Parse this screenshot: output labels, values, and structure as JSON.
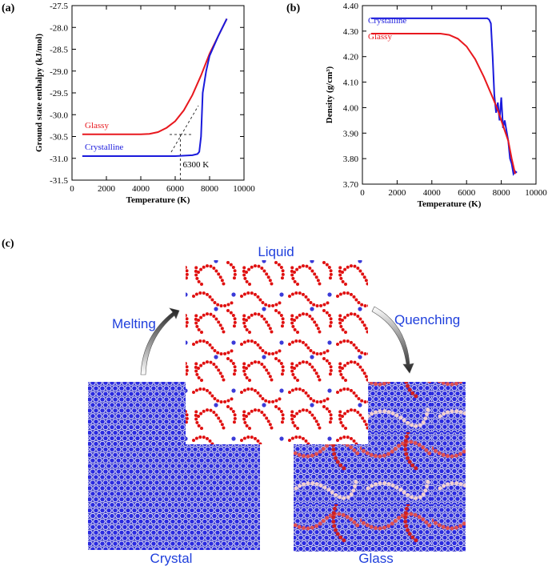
{
  "chart_data": [
    {
      "type": "line",
      "panel_label": "(a)",
      "x_label": "Temperature (K)",
      "y_label": "Ground state enthalpy (kJ/mol)",
      "xlim": [
        0,
        10000
      ],
      "xticks": [
        0,
        2000,
        4000,
        6000,
        8000,
        10000
      ],
      "ylim": [
        -31.5,
        -27.5
      ],
      "yticks": [
        -31.5,
        {
          "value": -31,
          "label": "-31.0"
        },
        -30.5,
        {
          "value": -30,
          "label": "-30.0"
        },
        -29.5,
        {
          "value": -29,
          "label": "-29.0"
        },
        -28.5,
        {
          "value": -28,
          "label": "-28.0"
        },
        -27.5
      ],
      "series": [
        {
          "name": "Glassy",
          "color": "#e8181e",
          "x": [
            600,
            2000,
            3000,
            4000,
            4500,
            5000,
            5500,
            6000,
            6500,
            7000,
            7500,
            8000,
            8500,
            9000
          ],
          "values": [
            -30.45,
            -30.45,
            -30.45,
            -30.45,
            -30.44,
            -30.4,
            -30.3,
            -30.15,
            -29.9,
            -29.55,
            -29.1,
            -28.6,
            -28.2,
            -27.8
          ]
        },
        {
          "name": "Crystalline",
          "color": "#1a1adc",
          "x": [
            600,
            2000,
            4000,
            6000,
            7000,
            7300,
            7400,
            7500,
            7600,
            7800,
            8000,
            8500,
            9000
          ],
          "values": [
            -30.95,
            -30.95,
            -30.95,
            -30.95,
            -30.93,
            -30.9,
            -30.85,
            -30.5,
            -29.5,
            -29.0,
            -28.65,
            -28.2,
            -27.8
          ]
        }
      ],
      "annotations": [
        {
          "value": 6300,
          "label": "6300 K"
        }
      ]
    },
    {
      "type": "line",
      "panel_label": "(b)",
      "x_label": "Temperature (K)",
      "y_label": "Density (g/cm³)",
      "xlim": [
        0,
        10000
      ],
      "xticks": [
        0,
        2000,
        4000,
        6000,
        8000,
        10000
      ],
      "ylim": [
        3.7,
        4.4
      ],
      "yticks": [
        {
          "value": 3.7,
          "label": "3.70"
        },
        {
          "value": 3.8,
          "label": "3.80"
        },
        {
          "value": 3.9,
          "label": "3.90"
        },
        {
          "value": 4.0,
          "label": "4.00"
        },
        {
          "value": 4.1,
          "label": "4.10"
        },
        {
          "value": 4.2,
          "label": "4.20"
        },
        {
          "value": 4.3,
          "label": "4.30"
        },
        {
          "value": 4.4,
          "label": "4.40"
        }
      ],
      "series": [
        {
          "name": "Crystalline",
          "color": "#1a1adc",
          "x": [
            500,
            3000,
            6000,
            7200,
            7300,
            7400,
            7500,
            7600,
            7700,
            7800,
            7900,
            8000,
            8100,
            8200,
            8400,
            8500,
            8600,
            8700,
            8800,
            8900
          ],
          "values": [
            4.35,
            4.35,
            4.35,
            4.35,
            4.345,
            4.33,
            4.2,
            4.05,
            3.98,
            4.02,
            3.95,
            4.04,
            3.92,
            3.95,
            3.87,
            3.8,
            3.78,
            3.74,
            3.75,
            3.745
          ]
        },
        {
          "name": "Glassy",
          "color": "#e8181e",
          "x": [
            500,
            2000,
            4000,
            4500,
            5000,
            5500,
            6000,
            6500,
            7000,
            7500,
            7800,
            8000,
            8200,
            8400,
            8600,
            8800
          ],
          "values": [
            4.29,
            4.29,
            4.29,
            4.29,
            4.285,
            4.27,
            4.24,
            4.19,
            4.12,
            4.04,
            3.99,
            3.95,
            3.91,
            3.87,
            3.8,
            3.74
          ]
        }
      ]
    }
  ],
  "illustration": {
    "panel_label": "(c)",
    "liquid": "Liquid",
    "melting": "Melting",
    "quenching": "Quenching",
    "crystal": "Crystal",
    "glass": "Glass"
  }
}
